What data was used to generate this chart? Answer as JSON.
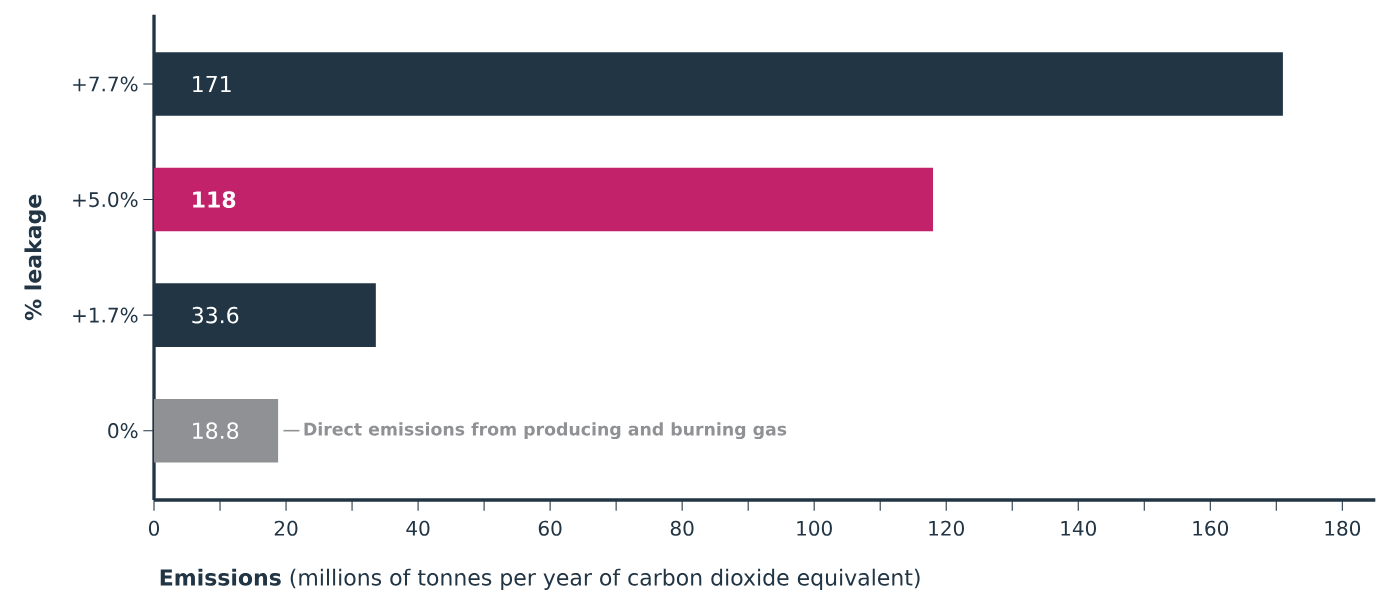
{
  "chart_data": {
    "type": "bar",
    "orientation": "horizontal",
    "categories": [
      "+7.7%",
      "+5.0%",
      "+1.7%",
      "0%"
    ],
    "values": [
      171,
      118,
      33.6,
      18.8
    ],
    "colors": [
      "#223544",
      "#c2226a",
      "#223544",
      "#8f9194"
    ],
    "value_labels": [
      "171",
      "**118**",
      "33.6",
      "18.8"
    ],
    "xlabel": "**Emissions** (millions of tonnes per year of carbon dioxide equivalent)",
    "ylabel": "% leakage",
    "xlim": [
      0,
      185
    ],
    "xticks": [
      0,
      {
        "value": 10,
        "label": null
      },
      20,
      {
        "value": 30,
        "label": null
      },
      40,
      {
        "value": 50,
        "label": null
      },
      60,
      {
        "value": 70,
        "label": null
      },
      80,
      {
        "value": 90,
        "label": null
      },
      100,
      {
        "value": 110,
        "label": null
      },
      120,
      {
        "value": 130,
        "label": null
      },
      140,
      {
        "value": 150,
        "label": null
      },
      160,
      {
        "value": 170,
        "label": null
      },
      180
    ],
    "annotations": [
      {
        "text": "Direct emissions from producing and burning gas",
        "x": 18.8,
        "y": "0%"
      }
    ],
    "grid": false
  }
}
